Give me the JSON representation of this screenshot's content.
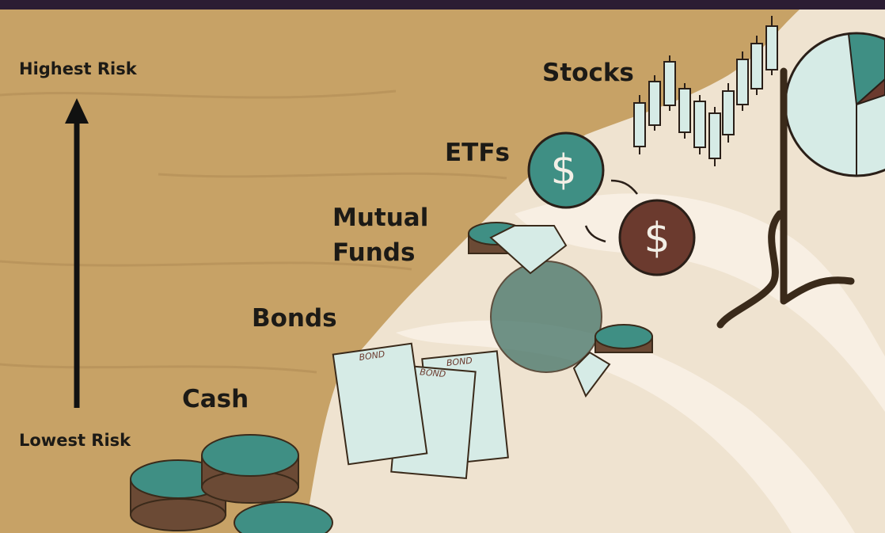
{
  "axis_labels": {
    "top": "Highest Risk",
    "bottom": "Lowest Risk"
  },
  "levels": [
    "Cash",
    "Bonds",
    "Mutual Funds",
    "ETFs",
    "Stocks"
  ],
  "bond_labels": [
    "BOND",
    "BOND",
    "BOND"
  ],
  "coin_symbols": [
    "$",
    "$"
  ]
}
